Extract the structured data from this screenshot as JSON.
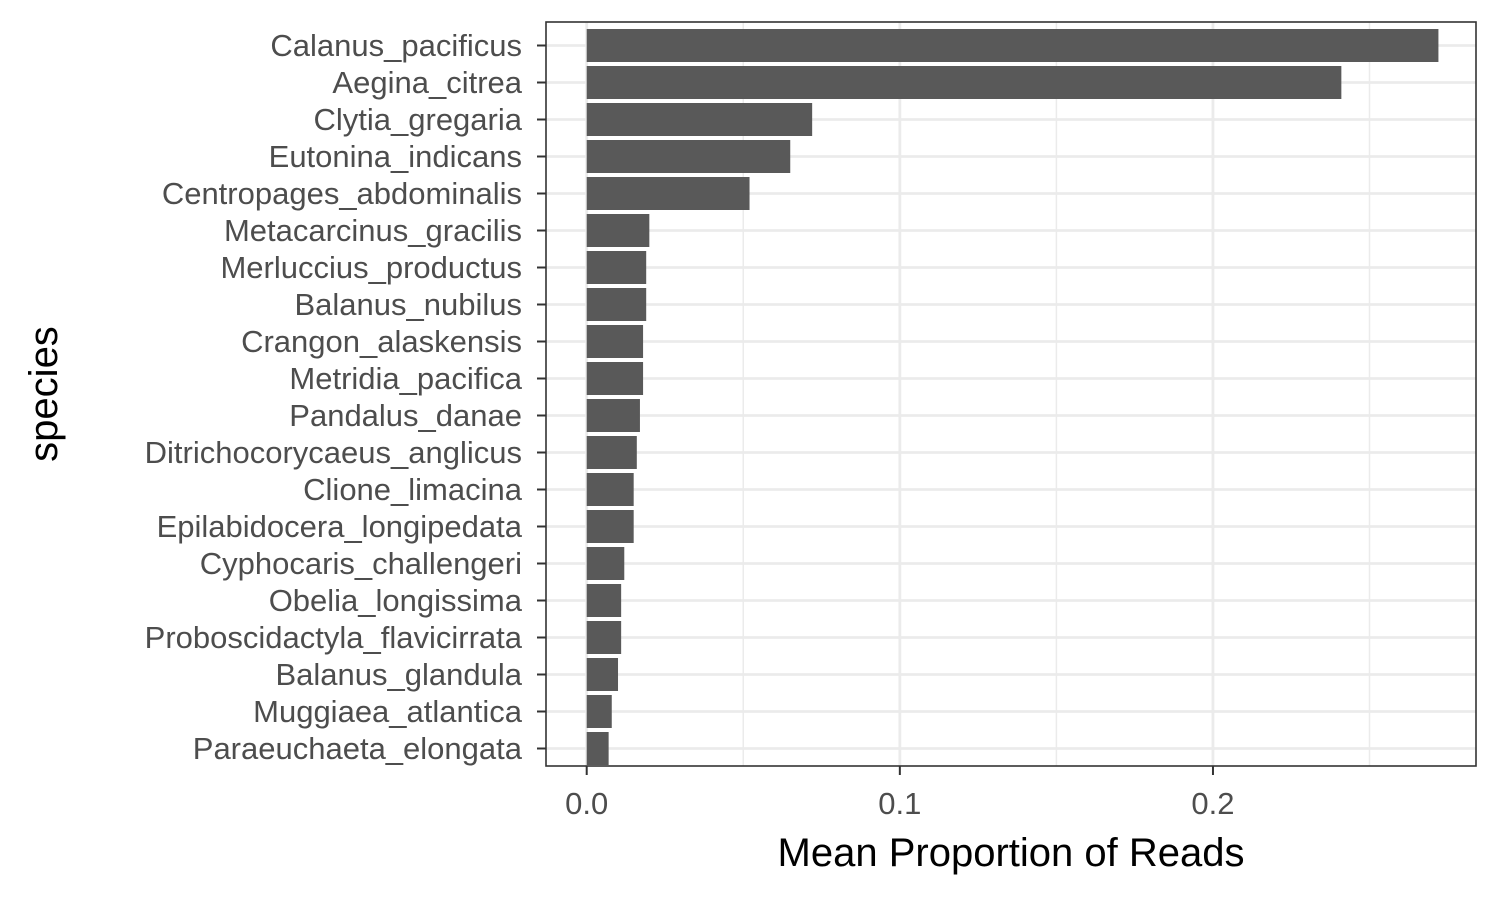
{
  "chart_data": {
    "type": "bar",
    "orientation": "horizontal",
    "xlabel": "Mean Proportion of Reads",
    "ylabel": "species",
    "xlim": [
      -0.013,
      0.284
    ],
    "x_ticks": [
      {
        "value": 0.0,
        "label": "0.0"
      },
      {
        "value": 0.1,
        "label": "0.1"
      },
      {
        "value": 0.2,
        "label": "0.2"
      }
    ],
    "x_minor_ticks": [
      0.05,
      0.15,
      0.25
    ],
    "grid": true,
    "bar_color": "#595959",
    "panel_border_color": "#333333",
    "grid_color": "#ebebeb",
    "categories": [
      "Calanus_pacificus",
      "Aegina_citrea",
      "Clytia_gregaria",
      "Eutonina_indicans",
      "Centropages_abdominalis",
      "Metacarcinus_gracilis",
      "Merluccius_productus",
      "Balanus_nubilus",
      "Crangon_alaskensis",
      "Metridia_pacifica",
      "Pandalus_danae",
      "Ditrichocorycaeus_anglicus",
      "Clione_limacina",
      "Epilabidocera_longipedata",
      "Cyphocaris_challengeri",
      "Obelia_longissima",
      "Proboscidactyla_flavicirrata",
      "Balanus_glandula",
      "Muggiaea_atlantica",
      "Paraeuchaeta_elongata"
    ],
    "values": [
      0.272,
      0.241,
      0.072,
      0.065,
      0.052,
      0.02,
      0.019,
      0.019,
      0.018,
      0.018,
      0.017,
      0.016,
      0.015,
      0.015,
      0.012,
      0.011,
      0.011,
      0.01,
      0.008,
      0.007
    ]
  }
}
